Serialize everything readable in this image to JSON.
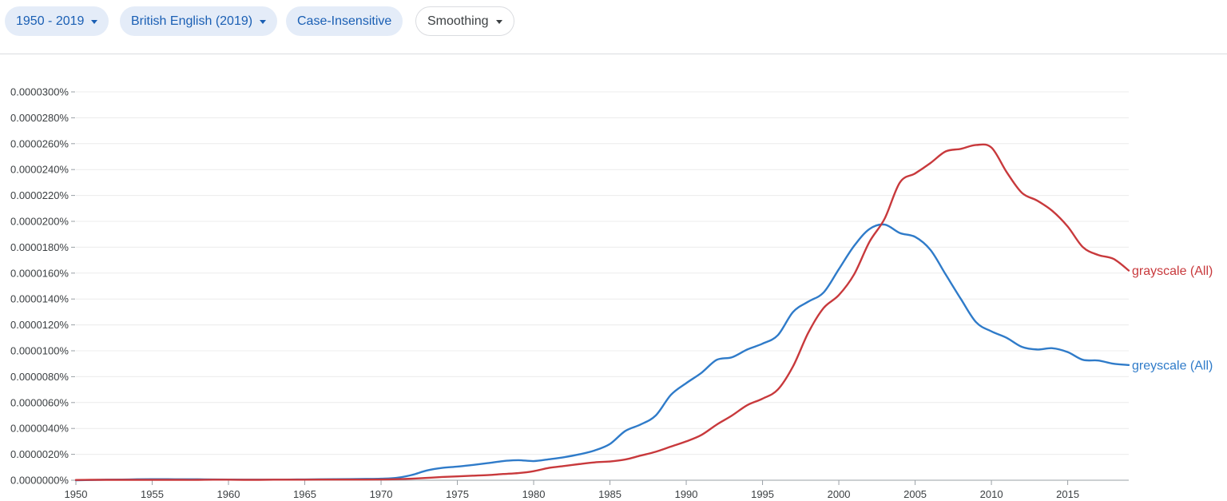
{
  "toolbar": {
    "range_label": "1950 - 2019",
    "corpus_label": "British English (2019)",
    "case_label": "Case-Insensitive",
    "smoothing_label": "Smoothing"
  },
  "colors": {
    "greyscale": "#2f7bc9",
    "grayscale": "#c8393c",
    "grid": "#ececec",
    "axis": "#9aa0a6"
  },
  "chart_data": {
    "type": "line",
    "title": "",
    "xlabel": "",
    "ylabel": "",
    "xlim": [
      1950,
      2019
    ],
    "ylim": [
      0,
      3e-05
    ],
    "x_ticks": [
      1950,
      1955,
      1960,
      1965,
      1970,
      1975,
      1980,
      1985,
      1990,
      1995,
      2000,
      2005,
      2010,
      2015
    ],
    "y_ticks": [
      "0.0000000%",
      "0.0000020%",
      "0.0000040%",
      "0.0000060%",
      "0.0000080%",
      "0.0000100%",
      "0.0000120%",
      "0.0000140%",
      "0.0000160%",
      "0.0000180%",
      "0.0000200%",
      "0.0000220%",
      "0.0000240%",
      "0.0000260%",
      "0.0000280%",
      "0.0000300%"
    ],
    "y_tick_values": [
      0,
      2e-06,
      4e-06,
      6e-06,
      8e-06,
      1e-05,
      1.2e-05,
      1.4e-05,
      1.6e-05,
      1.8e-05,
      2e-05,
      2.2e-05,
      2.4e-05,
      2.6e-05,
      2.8e-05,
      3e-05
    ],
    "grid": true,
    "x": [
      1950,
      1951,
      1952,
      1953,
      1954,
      1955,
      1956,
      1957,
      1958,
      1959,
      1960,
      1961,
      1962,
      1963,
      1964,
      1965,
      1966,
      1967,
      1968,
      1969,
      1970,
      1971,
      1972,
      1973,
      1974,
      1975,
      1976,
      1977,
      1978,
      1979,
      1980,
      1981,
      1982,
      1983,
      1984,
      1985,
      1986,
      1987,
      1988,
      1989,
      1990,
      1991,
      1992,
      1993,
      1994,
      1995,
      1996,
      1997,
      1998,
      1999,
      2000,
      2001,
      2002,
      2003,
      2004,
      2005,
      2006,
      2007,
      2008,
      2009,
      2010,
      2011,
      2012,
      2013,
      2014,
      2015,
      2016,
      2017,
      2018,
      2019
    ],
    "series": [
      {
        "name": "greyscale (All)",
        "key": "greyscale",
        "values": [
          0.0,
          2e-08,
          4e-08,
          5e-08,
          7e-08,
          8e-08,
          8e-08,
          7e-08,
          7e-08,
          6e-08,
          5e-08,
          4e-08,
          4e-08,
          4e-08,
          5e-08,
          6e-08,
          7e-08,
          8e-08,
          9e-08,
          1e-07,
          1.2e-07,
          1.8e-07,
          4e-07,
          7.5e-07,
          9.5e-07,
          1.05e-06,
          1.18e-06,
          1.32e-06,
          1.48e-06,
          1.55e-06,
          1.48e-06,
          1.62e-06,
          1.78e-06,
          2e-06,
          2.3e-06,
          2.8e-06,
          3.8e-06,
          4.3e-06,
          5e-06,
          6.6e-06,
          7.5e-06,
          8.3e-06,
          9.3e-06,
          9.5e-06,
          1.01e-05,
          1.055e-05,
          1.12e-05,
          1.3e-05,
          1.38e-05,
          1.45e-05,
          1.63e-05,
          1.81e-05,
          1.94e-05,
          1.975e-05,
          1.91e-05,
          1.88e-05,
          1.78e-05,
          1.59e-05,
          1.4e-05,
          1.22e-05,
          1.15e-05,
          1.1e-05,
          1.03e-05,
          1.01e-05,
          1.02e-05,
          9.9e-06,
          9.3e-06,
          9.25e-06,
          9e-06,
          8.9e-06
        ]
      },
      {
        "name": "grayscale (All)",
        "key": "grayscale",
        "values": [
          2e-08,
          3e-08,
          3e-08,
          3e-08,
          3e-08,
          3e-08,
          3e-08,
          3e-08,
          3e-08,
          4e-08,
          4e-08,
          3e-08,
          3e-08,
          4e-08,
          4e-08,
          4e-08,
          5e-08,
          5e-08,
          5e-08,
          5e-08,
          6e-08,
          8e-08,
          1.2e-07,
          1.8e-07,
          2.5e-07,
          3e-07,
          3.5e-07,
          4e-07,
          4.8e-07,
          5.5e-07,
          7e-07,
          9.5e-07,
          1.1e-06,
          1.25e-06,
          1.38e-06,
          1.45e-06,
          1.6e-06,
          1.9e-06,
          2.2e-06,
          2.6e-06,
          3e-06,
          3.5e-06,
          4.3e-06,
          5e-06,
          5.8e-06,
          6.3e-06,
          7e-06,
          8.8e-06,
          1.14e-05,
          1.33e-05,
          1.43e-05,
          1.59e-05,
          1.84e-05,
          2.02e-05,
          2.3e-05,
          2.37e-05,
          2.45e-05,
          2.54e-05,
          2.56e-05,
          2.59e-05,
          2.57e-05,
          2.38e-05,
          2.22e-05,
          2.16e-05,
          2.08e-05,
          1.96e-05,
          1.8e-05,
          1.74e-05,
          1.71e-05,
          1.62e-05
        ]
      }
    ]
  }
}
